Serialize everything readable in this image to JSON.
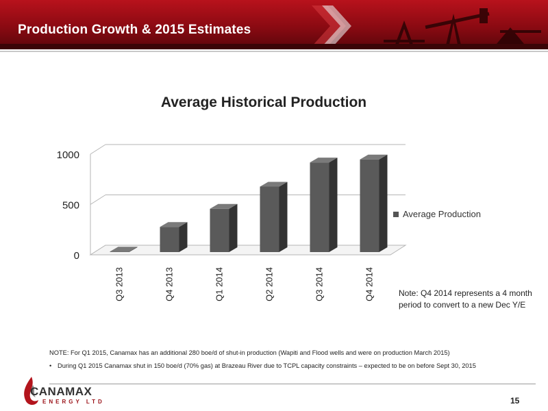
{
  "header": {
    "title": "Production Growth & 2015 Estimates"
  },
  "chart_data": {
    "type": "bar",
    "title": "Average Historical Production",
    "categories": [
      "Q3 2013",
      "Q4 2013",
      "Q1 2014",
      "Q2 2014",
      "Q3 2014",
      "Q4 2014"
    ],
    "series": [
      {
        "name": "Average Production",
        "values": [
          5,
          250,
          430,
          650,
          890,
          920
        ]
      }
    ],
    "ylim": [
      0,
      1000
    ],
    "yticks": [
      0,
      500,
      1000
    ],
    "grid": true,
    "legend": "right",
    "colors": {
      "bar_front": "#5a5a5a",
      "bar_side": "#333333",
      "bar_top": "#7a7a7a"
    }
  },
  "side_note": "Note: Q4 2014 represents a 4 month period to convert to a new Dec Y/E",
  "notes": {
    "line1": "NOTE: For Q1 2015, Canamax has an additional 280 boe/d of shut-in production (Wapiti and Flood wells and were on production March 2015)",
    "bullet": "•",
    "line2": "During Q1 2015 Canamax shut in 150 boe/d (70% gas) at Brazeau River due to TCPL capacity constraints – expected to be on before Sept 30, 2015"
  },
  "footer": {
    "page_number": "15",
    "logo_word": "CANAMAX",
    "logo_sub": "ENERGY LTD"
  }
}
